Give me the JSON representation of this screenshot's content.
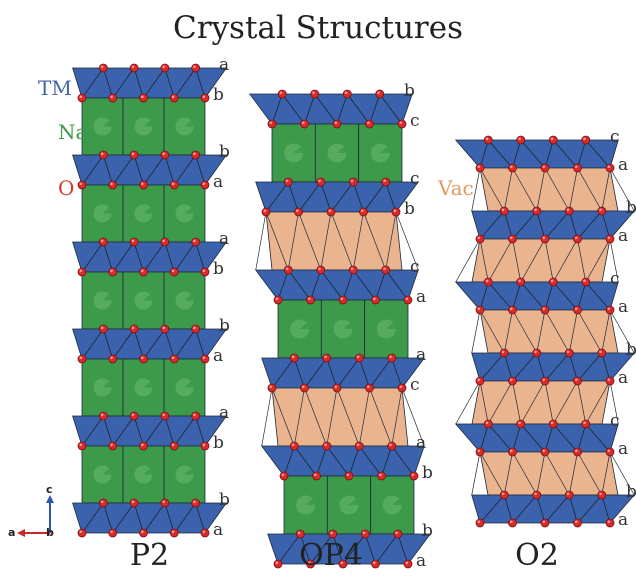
{
  "title": "Crystal Structures",
  "colors": {
    "tm": "#3b63ad",
    "na": "#3d9a4a",
    "na_dark": "#2a7a36",
    "vac": "#eab48f",
    "oxygen": "#d92b2b",
    "edge": "#1f2a3a"
  },
  "legend": {
    "tm": {
      "label": "TM",
      "color": "#4464a8"
    },
    "na": {
      "label": "Na",
      "color": "#3d9a4a"
    },
    "o": {
      "label": "O",
      "color": "#d23a2c"
    },
    "vac": {
      "label": "Vac",
      "color": "#e39a62"
    }
  },
  "axes": {
    "c": "c",
    "a": "a",
    "b": "b"
  },
  "structures": [
    {
      "name": "P2",
      "layers": [
        "tm",
        "na",
        "tm",
        "na",
        "tm",
        "na",
        "tm",
        "na",
        "tm",
        "na",
        "tm"
      ],
      "stacking": [
        "a",
        "b",
        "b",
        "a",
        "a",
        "b",
        "b",
        "a",
        "a",
        "b",
        "b",
        "a"
      ]
    },
    {
      "name": "OP4",
      "layers": [
        "tm",
        "na",
        "tm",
        "vac",
        "tm",
        "na",
        "tm",
        "vac",
        "tm",
        "na",
        "tm"
      ],
      "stacking": [
        "b",
        "c",
        "c",
        "b",
        "c",
        "a",
        "a",
        "c",
        "a",
        "b",
        "b",
        "a"
      ]
    },
    {
      "name": "O2",
      "layers": [
        "tm",
        "vac",
        "tm",
        "vac",
        "tm",
        "vac",
        "tm",
        "vac",
        "tm",
        "vac",
        "tm"
      ],
      "stacking": [
        "c",
        "a",
        "b",
        "a",
        "c",
        "a",
        "b",
        "a",
        "c",
        "a",
        "b",
        "a"
      ]
    }
  ]
}
